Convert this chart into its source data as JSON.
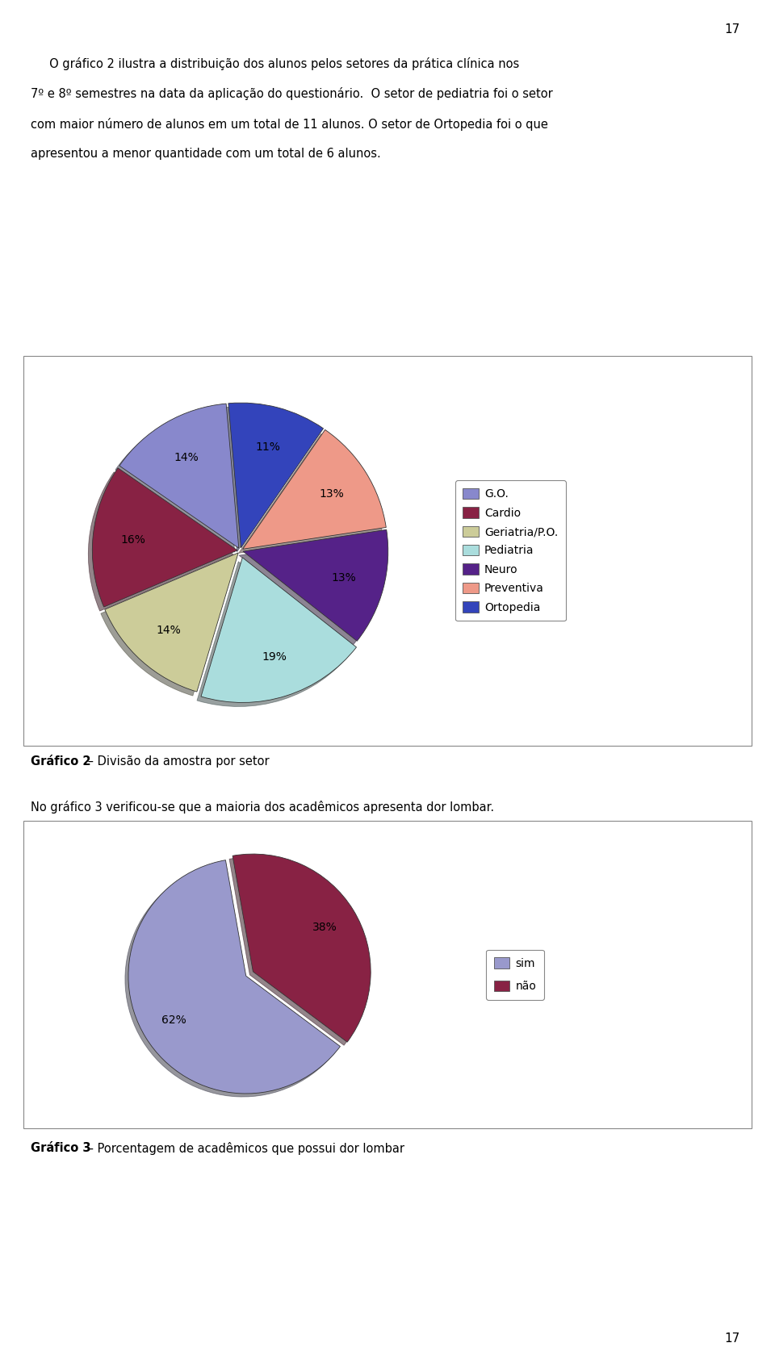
{
  "page_number": "17",
  "para1_lines": [
    "     O gráfico 2 ilustra a distribuição dos alunos pelos setores da prática clínica nos",
    "7º e 8º semestres na data da aplicação do questionário.  O setor de pediatria foi o setor",
    "com maior número de alunos em um total de 11 alunos. O setor de Ortopedia foi o que",
    "apresentou a menor quantidade com um total de 6 alunos."
  ],
  "caption2_bold": "Gráfico 2",
  "caption2_rest": " – Divisão da amostra por setor",
  "para2": "No gráfico 3 verificou-se que a maioria dos acadêmicos apresenta dor lombar.",
  "caption3_bold": "Gráfico 3",
  "caption3_rest": " – Porcentagem de acadêmicos que possui dor lombar",
  "chart1": {
    "labels": [
      "G.O.",
      "Cardio",
      "Geriatria/P.O.",
      "Pediatria",
      "Neuro",
      "Preventiva",
      "Ortopedia"
    ],
    "values": [
      14,
      16,
      14,
      19,
      13,
      13,
      11
    ],
    "colors": [
      "#8888cc",
      "#882244",
      "#cccc99",
      "#aadddd",
      "#552288",
      "#ee9988",
      "#3344bb"
    ],
    "explode": [
      0.02,
      0.02,
      0.02,
      0.05,
      0.02,
      0.02,
      0.02
    ]
  },
  "chart2": {
    "labels": [
      "sim",
      "não"
    ],
    "values": [
      62,
      38
    ],
    "colors": [
      "#9999cc",
      "#882244"
    ],
    "explode": [
      0.02,
      0.05
    ]
  },
  "background_color": "#ffffff"
}
